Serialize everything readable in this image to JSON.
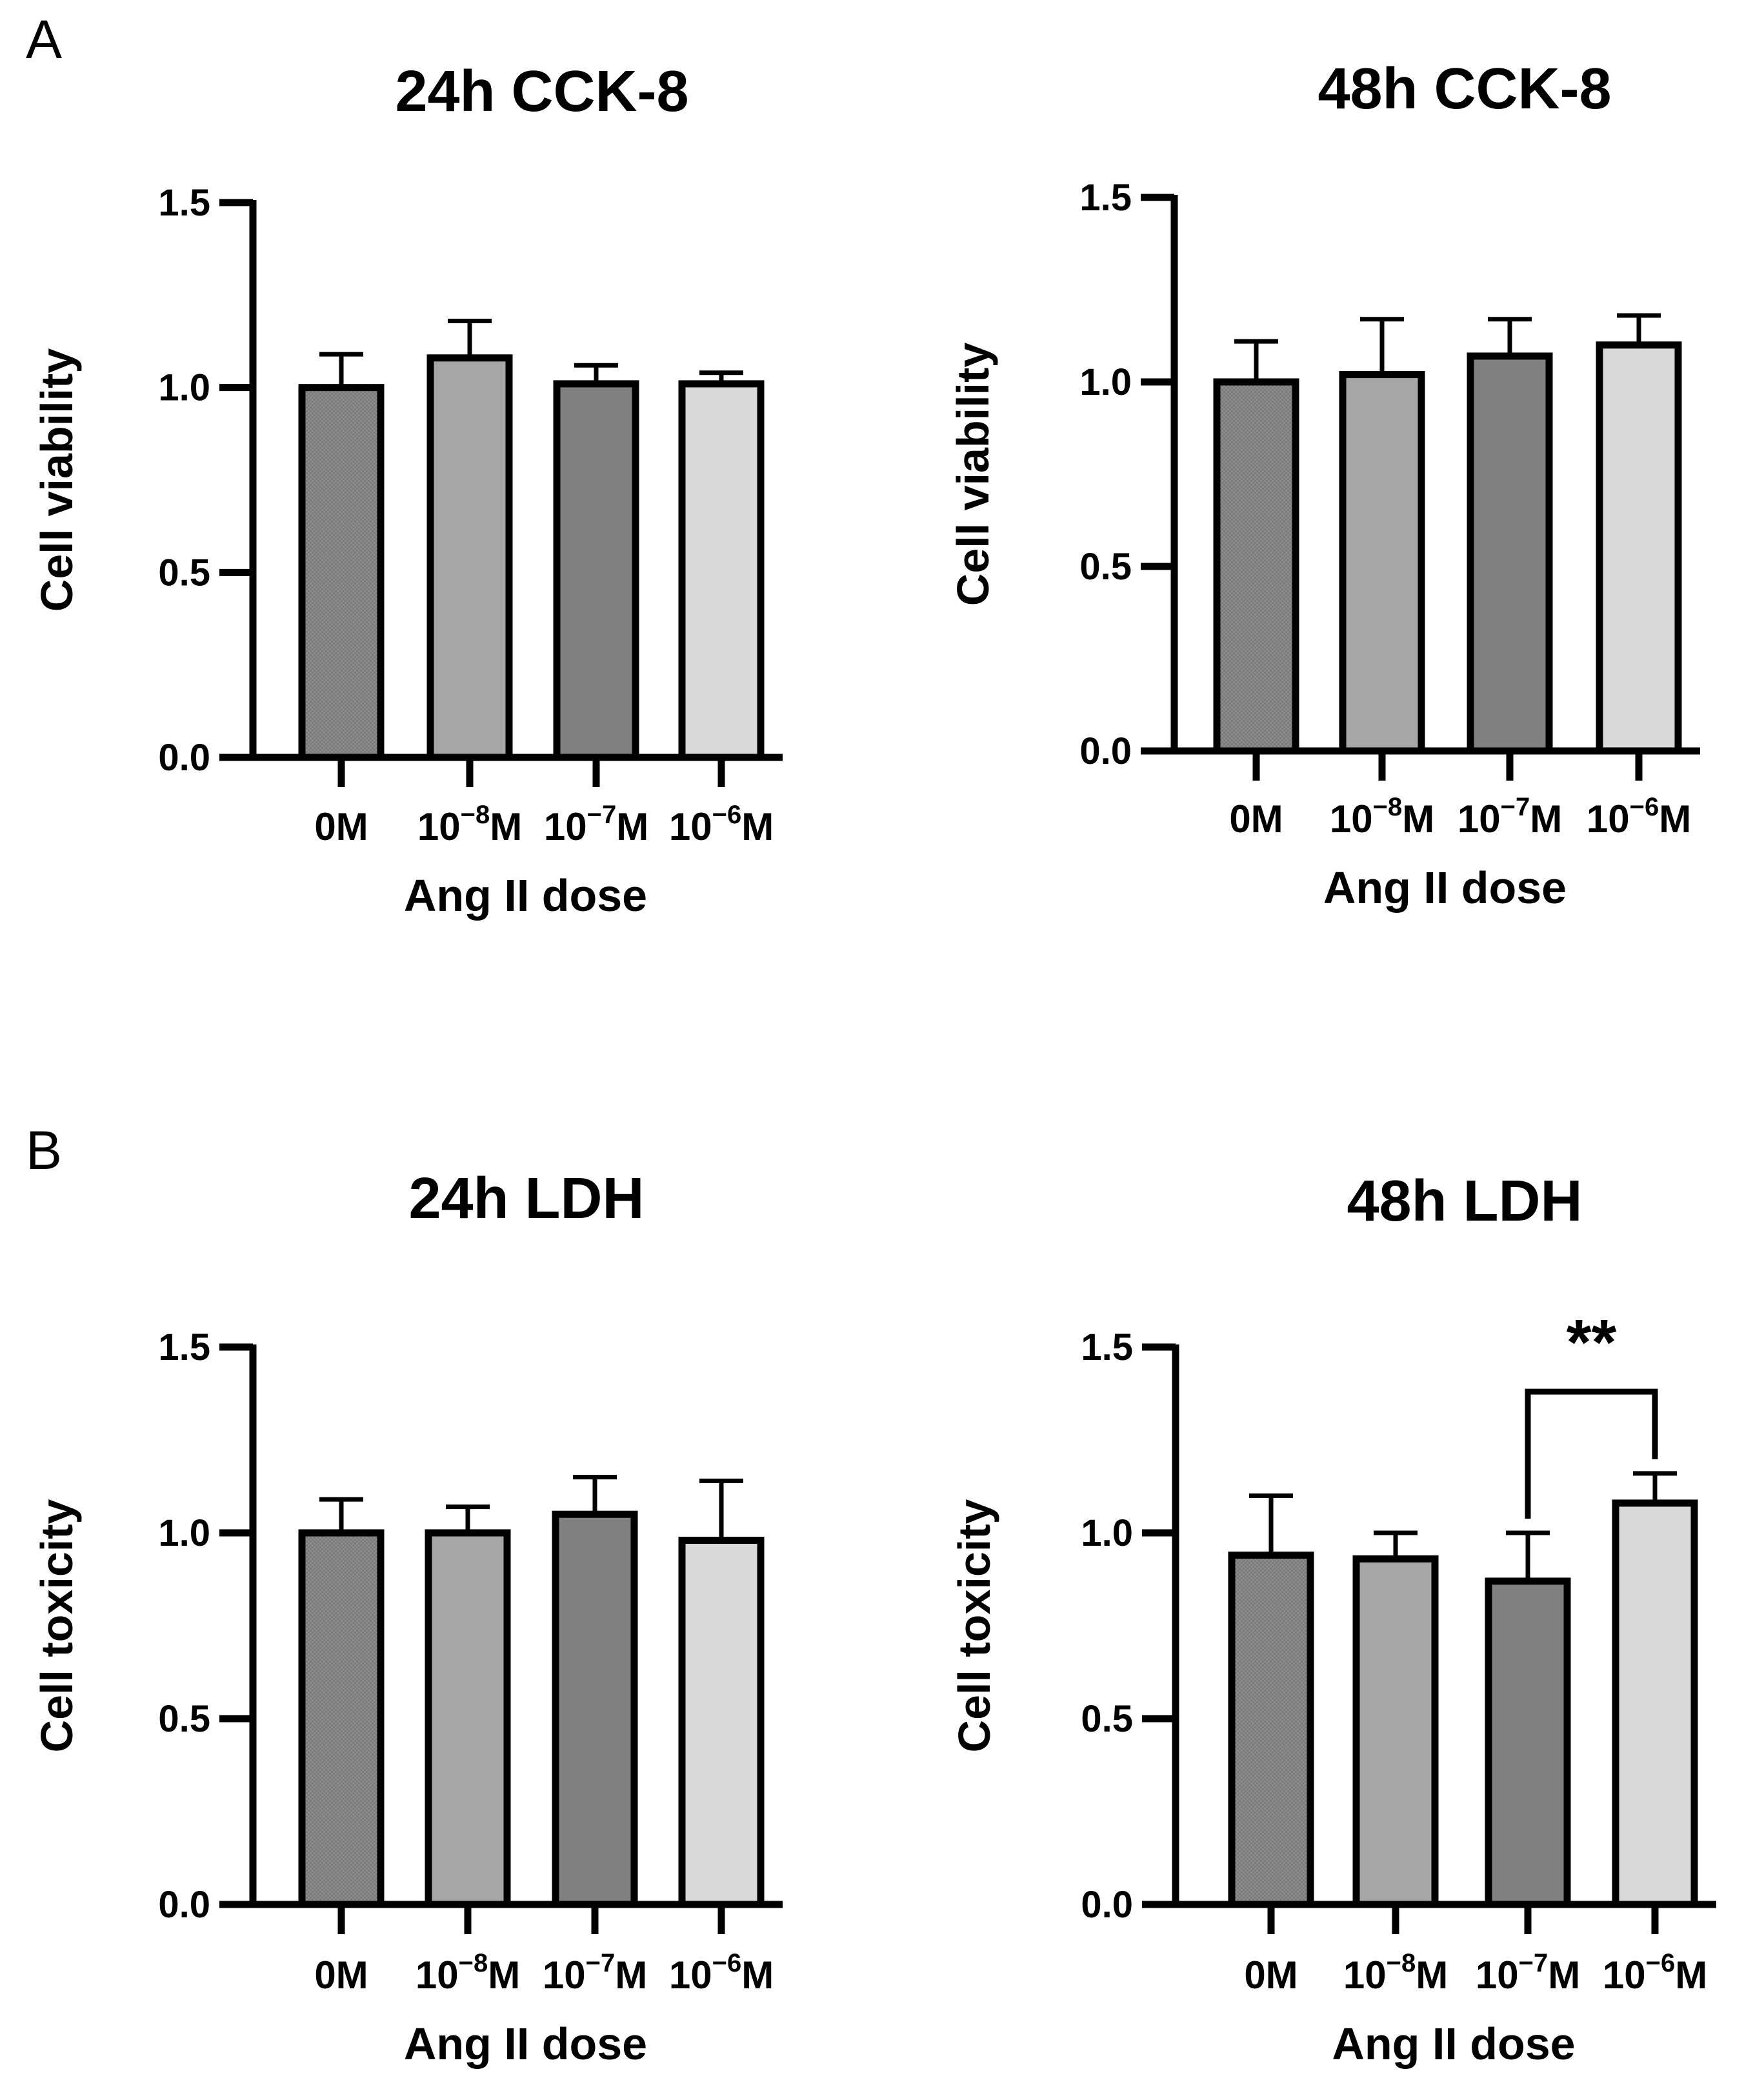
{
  "panels": [
    {
      "letter": "A"
    },
    {
      "letter": "B"
    }
  ],
  "chart_data": [
    {
      "type": "bar",
      "title": "24h CCK-8",
      "xlabel": "Ang II dose",
      "ylabel": "Cell viability",
      "ylim": [
        0,
        1.5
      ],
      "yticks": [
        "0.0",
        "0.5",
        "1.0",
        "1.5"
      ],
      "categories": [
        {
          "base": "0M",
          "exp": "",
          "unit": ""
        },
        {
          "base": "10",
          "exp": "−8",
          "unit": "M"
        },
        {
          "base": "10",
          "exp": "−7",
          "unit": "M"
        },
        {
          "base": "10",
          "exp": "−6",
          "unit": "M"
        }
      ],
      "values": [
        1.0,
        1.08,
        1.01,
        1.01
      ],
      "errors": [
        0.09,
        0.1,
        0.05,
        0.03
      ],
      "colors": [
        "#8c8c8c",
        "#a6a6a6",
        "#808080",
        "#d9d9d9"
      ],
      "significance": []
    },
    {
      "type": "bar",
      "title": "48h CCK-8",
      "xlabel": "Ang II dose",
      "ylabel": "Cell viability",
      "ylim": [
        0,
        1.5
      ],
      "yticks": [
        "0.0",
        "0.5",
        "1.0",
        "1.5"
      ],
      "categories": [
        {
          "base": "0M",
          "exp": "",
          "unit": ""
        },
        {
          "base": "10",
          "exp": "−8",
          "unit": "M"
        },
        {
          "base": "10",
          "exp": "−7",
          "unit": "M"
        },
        {
          "base": "10",
          "exp": "−6",
          "unit": "M"
        }
      ],
      "values": [
        1.0,
        1.02,
        1.07,
        1.1
      ],
      "errors": [
        0.11,
        0.15,
        0.1,
        0.08
      ],
      "colors": [
        "#8c8c8c",
        "#a6a6a6",
        "#808080",
        "#d9d9d9"
      ],
      "significance": []
    },
    {
      "type": "bar",
      "title": "24h LDH",
      "xlabel": "Ang II dose",
      "ylabel": "Cell toxicity",
      "ylim": [
        0,
        1.5
      ],
      "yticks": [
        "0.0",
        "0.5",
        "1.0",
        "1.5"
      ],
      "categories": [
        {
          "base": "0M",
          "exp": "",
          "unit": ""
        },
        {
          "base": "10",
          "exp": "−8",
          "unit": "M"
        },
        {
          "base": "10",
          "exp": "−7",
          "unit": "M"
        },
        {
          "base": "10",
          "exp": "−6",
          "unit": "M"
        }
      ],
      "values": [
        1.0,
        1.0,
        1.05,
        0.98
      ],
      "errors": [
        0.09,
        0.07,
        0.1,
        0.16
      ],
      "colors": [
        "#8c8c8c",
        "#a6a6a6",
        "#808080",
        "#d9d9d9"
      ],
      "significance": []
    },
    {
      "type": "bar",
      "title": "48h LDH",
      "xlabel": "Ang II dose",
      "ylabel": "Cell toxicity",
      "ylim": [
        0,
        1.5
      ],
      "yticks": [
        "0.0",
        "0.5",
        "1.0",
        "1.5"
      ],
      "categories": [
        {
          "base": "0M",
          "exp": "",
          "unit": ""
        },
        {
          "base": "10",
          "exp": "−8",
          "unit": "M"
        },
        {
          "base": "10",
          "exp": "−7",
          "unit": "M"
        },
        {
          "base": "10",
          "exp": "−6",
          "unit": "M"
        }
      ],
      "values": [
        0.94,
        0.93,
        0.87,
        1.08
      ],
      "errors": [
        0.16,
        0.07,
        0.13,
        0.08
      ],
      "colors": [
        "#8c8c8c",
        "#a6a6a6",
        "#808080",
        "#d9d9d9"
      ],
      "significance": [
        {
          "from": 2,
          "to": 3,
          "label": "**",
          "level": 1.38
        }
      ]
    }
  ]
}
